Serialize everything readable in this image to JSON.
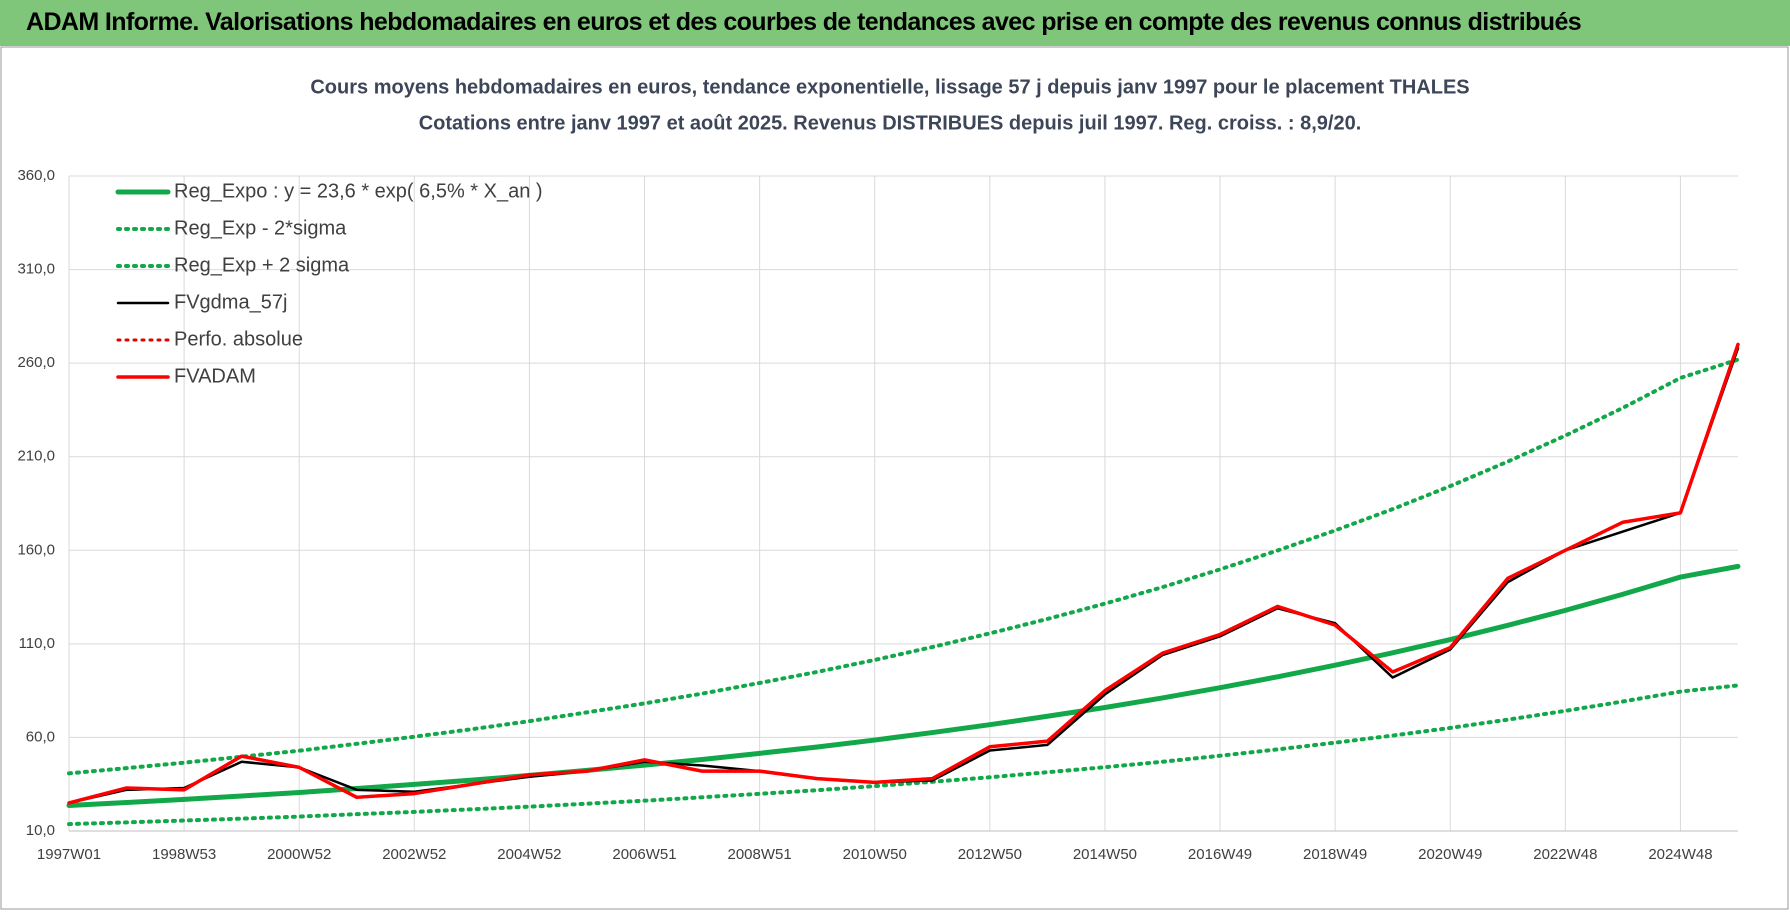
{
  "header": {
    "title": "ADAM Informe. Valorisations hebdomadaires en euros et des courbes de tendances avec prise en compte des revenus connus distribués"
  },
  "chart_data": {
    "type": "line",
    "title": "Cours moyens hebdomadaires en euros, tendance exponentielle, lissage 57 j depuis janv 1997  pour le placement THALES",
    "subtitle": "Cotations entre janv 1997 et août 2025.  Revenus DISTRIBUES depuis juil 1997.  Reg. croiss. : 8,9/20.",
    "categories": [
      "1997W01",
      null,
      "1998W53",
      null,
      "2000W52",
      null,
      "2002W52",
      null,
      "2004W52",
      null,
      "2006W51",
      null,
      "2008W51",
      null,
      "2010W50",
      null,
      "2012W50",
      null,
      "2014W50",
      null,
      "2016W49",
      null,
      "2018W49",
      null,
      "2020W49",
      null,
      "2022W48",
      null,
      "2024W48",
      null
    ],
    "ylim": [
      10,
      360
    ],
    "yticks": [
      {
        "value": 10,
        "label": "10,0"
      },
      {
        "value": 60,
        "label": "60,0"
      },
      {
        "value": 110,
        "label": "110,0"
      },
      {
        "value": 160,
        "label": "160,0"
      },
      {
        "value": 210,
        "label": "210,0"
      },
      {
        "value": 260,
        "label": "260,0"
      },
      {
        "value": 310,
        "label": "310,0"
      },
      {
        "value": 360,
        "label": "360,0"
      }
    ],
    "grid": true,
    "legend": "top-left",
    "series": [
      {
        "name": "Reg_Expo : y = 23,6 * exp( 6,5% *  X_an )",
        "color": "#12a84a",
        "style": "solid",
        "width": 5,
        "values": [
          23.6,
          25.2,
          26.9,
          28.7,
          30.6,
          32.7,
          34.9,
          37.2,
          39.7,
          42.4,
          45.2,
          48.2,
          51.5,
          54.9,
          58.6,
          62.6,
          66.8,
          71.3,
          76.0,
          81.1,
          86.6,
          92.4,
          98.6,
          105.2,
          112.3,
          119.9,
          127.9,
          136.5,
          145.7,
          151.4
        ]
      },
      {
        "name": "Reg_Exp - 2*sigma",
        "color": "#12a84a",
        "style": "dotted",
        "width": 4,
        "values": [
          13.7,
          14.6,
          15.6,
          16.6,
          17.7,
          19.0,
          20.2,
          21.6,
          23.0,
          24.6,
          26.2,
          28.0,
          29.9,
          31.8,
          34.0,
          36.3,
          38.7,
          41.4,
          44.1,
          47.0,
          50.2,
          53.6,
          57.2,
          61.0,
          65.1,
          69.5,
          74.2,
          79.2,
          84.5,
          87.8
        ]
      },
      {
        "name": "Reg_Exp + 2 sigma",
        "color": "#12a84a",
        "style": "dotted",
        "width": 4,
        "values": [
          40.8,
          43.6,
          46.5,
          49.7,
          52.9,
          56.6,
          60.4,
          64.4,
          68.7,
          73.4,
          78.2,
          83.4,
          89.1,
          95.0,
          101.4,
          108.3,
          115.6,
          123.3,
          131.5,
          140.3,
          149.8,
          159.9,
          170.6,
          182.0,
          194.3,
          207.4,
          221.3,
          236.1,
          252.1,
          261.9
        ]
      },
      {
        "name": "FVgdma_57j",
        "color": "#000000",
        "style": "solid",
        "width": 2.5,
        "values": [
          25,
          32,
          33,
          47,
          44,
          32,
          31,
          35,
          39,
          42,
          47,
          45,
          42,
          38,
          36,
          37,
          53,
          56,
          83,
          104,
          114,
          129,
          121,
          92,
          107,
          143,
          160,
          170,
          180,
          268
        ]
      },
      {
        "name": "Perfo. absolue",
        "color": "#e00000",
        "style": "dotted",
        "width": 3,
        "values": [
          25,
          33,
          32,
          50,
          44,
          28,
          30,
          35,
          40,
          42,
          48,
          42,
          42,
          38,
          36,
          38,
          55,
          58,
          85,
          105,
          115,
          130,
          120,
          95,
          108,
          145,
          160,
          175,
          180,
          270
        ]
      },
      {
        "name": "FVADAM",
        "color": "#ff0000",
        "style": "solid",
        "width": 3.5,
        "values": [
          25,
          33,
          32,
          50,
          44,
          28,
          30,
          35,
          40,
          42,
          48,
          42,
          42,
          38,
          36,
          38,
          55,
          58,
          85,
          105,
          115,
          130,
          120,
          95,
          108,
          145,
          160,
          175,
          180,
          270
        ]
      }
    ]
  }
}
